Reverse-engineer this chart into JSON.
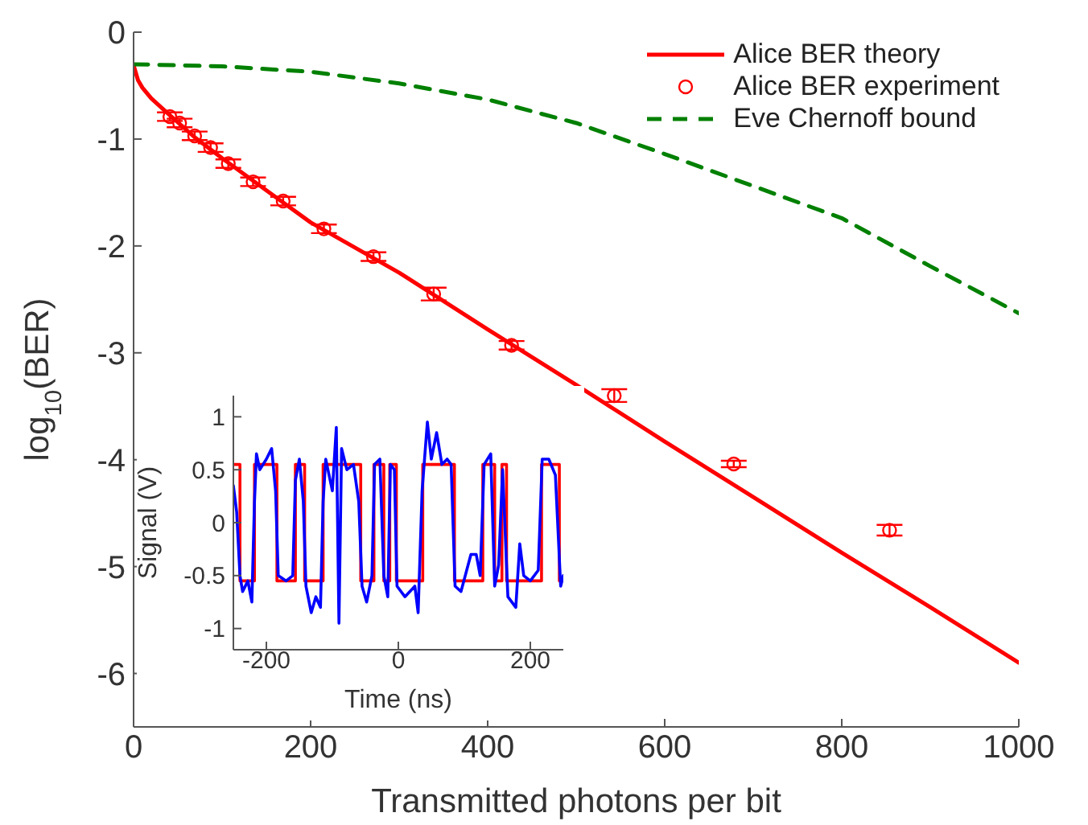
{
  "chart_data": [
    {
      "type": "line",
      "xlabel": "Transmitted photons per bit",
      "ylabel": "log$_{10}$(BER)",
      "xlim": [
        0,
        1000
      ],
      "xticks": [
        0,
        200,
        400,
        600,
        800,
        1000
      ],
      "ylim": [
        -6.5,
        0
      ],
      "yticks": [
        0,
        -1,
        -2,
        -3,
        -4,
        -5,
        -6
      ],
      "grid": false,
      "legend": "top right",
      "series": [
        {
          "name": "Alice BER theory",
          "color": "#ff0000",
          "marker": "none",
          "line_style": "solid",
          "x": [
            0,
            5,
            10,
            20,
            40,
            70,
            100,
            150,
            200,
            300,
            400,
            500,
            600,
            700,
            800,
            900,
            1000
          ],
          "values": [
            -0.31,
            -0.45,
            -0.52,
            -0.62,
            -0.77,
            -0.99,
            -1.18,
            -1.48,
            -1.78,
            -2.25,
            -2.78,
            -3.3,
            -3.83,
            -4.35,
            -4.87,
            -5.38,
            -5.9
          ]
        },
        {
          "name": "Alice BER experiment",
          "type": "scatter",
          "color": "#ff0000",
          "marker": "circle",
          "x": [
            41,
            52,
            69,
            87,
            107,
            135,
            169,
            215,
            271,
            339,
            427,
            543,
            678,
            854
          ],
          "values": [
            -0.79,
            -0.85,
            -0.97,
            -1.08,
            -1.23,
            -1.4,
            -1.58,
            -1.84,
            -2.1,
            -2.45,
            -2.93,
            -3.4,
            -4.04,
            -4.66
          ],
          "errors": [
            0.04,
            0.04,
            0.04,
            0.04,
            0.04,
            0.04,
            0.04,
            0.04,
            0.04,
            0.06,
            0.04,
            0.06,
            0.03,
            0.05
          ]
        },
        {
          "name": "Eve Chernoff bound",
          "color": "#008000",
          "marker": "none",
          "line_style": "dashed",
          "x": [
            0,
            100,
            200,
            300,
            400,
            500,
            600,
            700,
            800,
            900,
            1000
          ],
          "values": [
            -0.3,
            -0.32,
            -0.37,
            -0.48,
            -0.63,
            -0.85,
            -1.14,
            -1.44,
            -1.74,
            -2.19,
            -2.63
          ]
        }
      ]
    },
    {
      "type": "line",
      "xlabel": "Time (ns)",
      "ylabel": "Signal (V)",
      "xlim": [
        -250,
        250
      ],
      "xticks": [
        -200,
        0,
        200
      ],
      "ylim": [
        -1.2,
        1.2
      ],
      "yticks": [
        -1,
        -0.5,
        0,
        0.5,
        1
      ],
      "grid": false,
      "series": [
        {
          "color": "#ff0000",
          "marker": "none",
          "line_style": "solid",
          "x": [
            -250,
            -240,
            -240,
            -218,
            -218,
            -184,
            -184,
            -156,
            -156,
            -142,
            -142,
            -114,
            -114,
            -57,
            -57,
            -37,
            -37,
            -22,
            -22,
            -13,
            -13,
            -3,
            -3,
            37,
            37,
            85,
            85,
            128,
            128,
            146,
            146,
            157,
            157,
            164,
            164,
            217,
            217,
            244,
            244,
            250
          ],
          "values": [
            0.55,
            0.55,
            -0.55,
            -0.55,
            0.55,
            0.55,
            -0.55,
            -0.55,
            0.55,
            0.55,
            -0.55,
            -0.55,
            0.55,
            0.55,
            -0.55,
            -0.55,
            0.55,
            0.55,
            -0.55,
            -0.55,
            0.55,
            0.55,
            -0.55,
            -0.55,
            0.55,
            0.55,
            -0.55,
            -0.55,
            0.55,
            0.55,
            -0.55,
            -0.55,
            0.55,
            0.55,
            -0.55,
            -0.55,
            0.55,
            0.55,
            -0.55,
            -0.55
          ]
        },
        {
          "color": "#0000ff",
          "marker": "none",
          "line_style": "solid",
          "x": [
            -250,
            -245,
            -240,
            -236,
            -228,
            -222,
            -218,
            -215,
            -210,
            -200,
            -192,
            -186,
            -182,
            -170,
            -160,
            -156,
            -150,
            -144,
            -140,
            -132,
            -125,
            -118,
            -114,
            -110,
            -100,
            -94,
            -90,
            -86,
            -78,
            -68,
            -60,
            -55,
            -48,
            -40,
            -36,
            -28,
            -22,
            -16,
            -12,
            -6,
            -2,
            10,
            25,
            30,
            36,
            44,
            50,
            58,
            66,
            74,
            80,
            86,
            95,
            110,
            118,
            124,
            130,
            140,
            146,
            152,
            158,
            166,
            178,
            184,
            190,
            200,
            212,
            218,
            228,
            238,
            246,
            250
          ],
          "values": [
            0.35,
            0.1,
            -0.5,
            -0.65,
            -0.55,
            -0.75,
            0.2,
            0.65,
            0.5,
            0.6,
            0.7,
            0.3,
            -0.5,
            -0.55,
            -0.5,
            0.4,
            0.6,
            0.2,
            -0.6,
            -0.85,
            -0.7,
            -0.8,
            0.2,
            0.6,
            0.3,
            0.9,
            -0.95,
            0.7,
            0.5,
            0.55,
            0.2,
            -0.6,
            -0.75,
            -0.5,
            0.55,
            0.6,
            -0.5,
            -0.7,
            0.55,
            0.5,
            -0.6,
            -0.7,
            -0.6,
            -0.85,
            0.3,
            0.95,
            0.6,
            0.85,
            0.55,
            0.6,
            0.55,
            -0.6,
            -0.65,
            -0.3,
            -0.3,
            -0.5,
            0.55,
            0.65,
            -0.6,
            -0.4,
            0.5,
            -0.7,
            -0.8,
            -0.2,
            -0.5,
            -0.55,
            -0.45,
            0.6,
            0.6,
            0.45,
            -0.6,
            -0.5
          ]
        }
      ]
    }
  ]
}
